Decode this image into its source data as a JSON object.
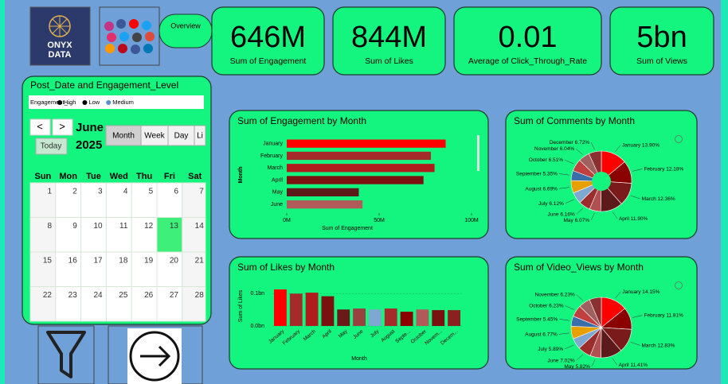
{
  "logo": {
    "line1": "ONYX",
    "line2": "DATA"
  },
  "nav": {
    "overview": "Overview"
  },
  "kpis": [
    {
      "value": "646M",
      "label": "Sum of Engagement"
    },
    {
      "value": "844M",
      "label": "Sum of Likes"
    },
    {
      "value": "0.01",
      "label": "Average of Click_Through_Rate"
    },
    {
      "value": "5bn",
      "label": "Sum of Views"
    }
  ],
  "calendar": {
    "title": "Post_Date and Engagement_Level",
    "legend_title": "Engagement_...",
    "legend": [
      "High",
      "Low",
      "Medium"
    ],
    "legend_colors": [
      "#000000",
      "#000000",
      "#5b8fc7"
    ],
    "prev": "<",
    "next": ">",
    "month": "June",
    "year": "2025",
    "today": "Today",
    "views": [
      "Month",
      "Week",
      "Day",
      "Li"
    ],
    "days": [
      "Sun",
      "Mon",
      "Tue",
      "Wed",
      "Thu",
      "Fri",
      "Sat"
    ],
    "weeks": [
      [
        1,
        2,
        3,
        4,
        5,
        6,
        7
      ],
      [
        8,
        9,
        10,
        11,
        12,
        13,
        14
      ],
      [
        15,
        16,
        17,
        18,
        19,
        20,
        21
      ],
      [
        22,
        23,
        24,
        25,
        26,
        27,
        28
      ]
    ]
  },
  "chart_data": [
    {
      "type": "hbar",
      "title": "Sum of Engagement by Month",
      "x_label": "Sum of Engagement",
      "y_label": "Month",
      "categories": [
        "January",
        "February",
        "March",
        "April",
        "May",
        "June"
      ],
      "values": [
        86,
        78,
        80,
        74,
        39,
        41
      ],
      "colors": [
        "#ff0000",
        "#a52a2a",
        "#b01c1c",
        "#7a1010",
        "#5c1a1a",
        "#b05a5a"
      ],
      "xlim": [
        0,
        100
      ],
      "xticks": [
        {
          "value": 0,
          "label": "0M"
        },
        {
          "value": 50,
          "label": "50M"
        },
        {
          "value": 100,
          "label": "100M"
        }
      ]
    },
    {
      "type": "pie",
      "title": "Sum of Comments by Month",
      "donut": true,
      "categories": [
        "January",
        "February",
        "March",
        "April",
        "May",
        "June",
        "July",
        "August",
        "September",
        "October",
        "November",
        "December"
      ],
      "values": [
        13.9,
        12.18,
        12.36,
        11.9,
        6.07,
        6.16,
        6.12,
        6.69,
        5.35,
        6.51,
        6.04,
        6.72
      ],
      "value_labels": [
        "13.90%",
        "12.18%",
        "12.36%",
        "11.90%",
        "6.07%",
        "6.16%",
        "6.12%",
        "6.69%",
        "5.35%",
        "6.51%",
        "6.04%",
        "6.72%"
      ],
      "colors": [
        "#ff0000",
        "#8b0000",
        "#7a1a1a",
        "#5c1a1a",
        "#b05050",
        "#9b2d2d",
        "#7fa8d0",
        "#e8a000",
        "#3a6ea8",
        "#c04040",
        "#a06060",
        "#8a3030"
      ]
    },
    {
      "type": "bar",
      "title": "Sum of Likes by Month",
      "x_label": "Month",
      "y_label": "Sum of Likes",
      "categories": [
        "January",
        "February",
        "March",
        "April",
        "May",
        "June",
        "July",
        "August",
        "Septe...",
        "October",
        "Novem...",
        "Decem..."
      ],
      "values": [
        0.113,
        0.1,
        0.103,
        0.092,
        0.051,
        0.054,
        0.051,
        0.054,
        0.044,
        0.051,
        0.049,
        0.049
      ],
      "colors": [
        "#ff0000",
        "#a52a2a",
        "#b01c1c",
        "#7a1010",
        "#6b1a1a",
        "#9b4040",
        "#7fa8d0",
        "#a52a2a",
        "#8b0000",
        "#b05a5a",
        "#7a1010",
        "#8a2020"
      ],
      "ylim": [
        0,
        0.12
      ],
      "yticks": [
        {
          "value": 0,
          "label": "0.0bn"
        },
        {
          "value": 0.1,
          "label": "0.1bn"
        }
      ],
      "grid": true
    },
    {
      "type": "pie",
      "title": "Sum of Video_Views by Month",
      "donut": false,
      "categories": [
        "January",
        "February",
        "March",
        "April",
        "May",
        "June",
        "July",
        "August",
        "September",
        "October",
        "November",
        null
      ],
      "values": [
        14.15,
        11.81,
        12.83,
        11.41,
        5.82,
        7.02,
        5.89,
        6.77,
        5.45,
        6.23,
        6.23,
        6.39
      ],
      "value_labels": [
        "14.15%",
        "11.81%",
        "12.83%",
        "11.41%",
        "5.82%",
        "7.02%",
        "5.89%",
        "6.77%",
        "5.45%",
        "6.23%",
        "6.23%",
        null
      ],
      "colors": [
        "#ff0000",
        "#8b0000",
        "#7a1a1a",
        "#5c1a1a",
        "#b05050",
        "#9b2d2d",
        "#7fa8d0",
        "#e8a000",
        "#3a6ea8",
        "#c04040",
        "#a06060",
        "#8a3030"
      ]
    }
  ]
}
